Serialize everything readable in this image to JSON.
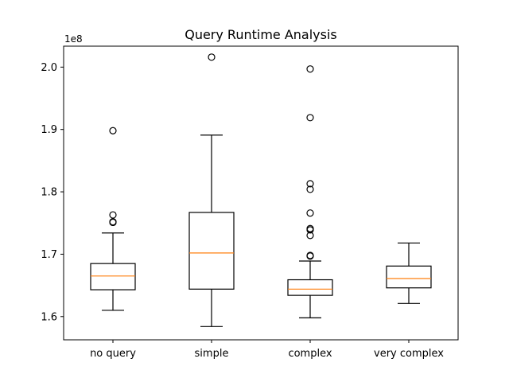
{
  "chart_data": {
    "type": "box",
    "title": "Query Runtime Analysis",
    "xlabel": "",
    "ylabel": "",
    "y_scale_label": "1e8",
    "ylim": [
      1.5627,
      2.0336
    ],
    "yticks": [
      1.6,
      1.7,
      1.8,
      1.9,
      2.0
    ],
    "ytick_labels": [
      "1.6",
      "1.7",
      "1.8",
      "1.9",
      "2.0"
    ],
    "grid": false,
    "colors": {
      "box": "#000000",
      "median": "#ff7f0e",
      "axes": "#000000",
      "background": "#ffffff"
    },
    "categories": [
      "no query",
      "simple",
      "complex",
      "very complex"
    ],
    "boxes": [
      {
        "label": "no query",
        "whisker_low": 1.61,
        "q1": 1.643,
        "median": 1.665,
        "q3": 1.685,
        "whisker_high": 1.734,
        "outliers": [
          1.751,
          1.752,
          1.763,
          1.898
        ]
      },
      {
        "label": "simple",
        "whisker_low": 1.584,
        "q1": 1.644,
        "median": 1.702,
        "q3": 1.767,
        "whisker_high": 1.891,
        "outliers": [
          2.016
        ]
      },
      {
        "label": "complex",
        "whisker_low": 1.598,
        "q1": 1.634,
        "median": 1.644,
        "q3": 1.659,
        "whisker_high": 1.689,
        "outliers": [
          1.697,
          1.698,
          1.73,
          1.739,
          1.741,
          1.766,
          1.804,
          1.813,
          1.919,
          1.997
        ]
      },
      {
        "label": "very complex",
        "whisker_low": 1.621,
        "q1": 1.646,
        "median": 1.661,
        "q3": 1.681,
        "whisker_high": 1.718,
        "outliers": []
      }
    ]
  }
}
